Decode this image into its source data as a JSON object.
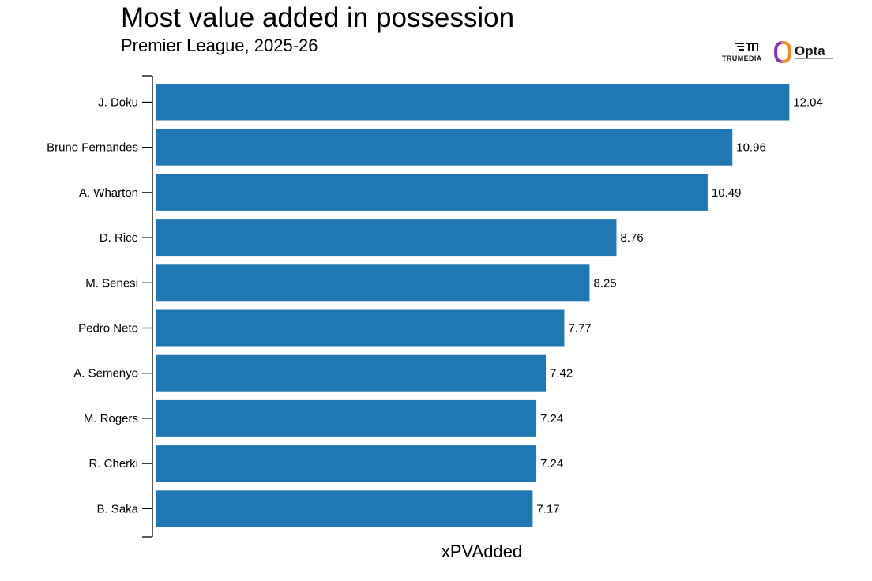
{
  "header": {
    "title": "Most value added in possession",
    "subtitle": "Premier League, 2025-26"
  },
  "logos": {
    "truemedia_label": "TRUMEDIA",
    "opta_label": "Opta"
  },
  "colors": {
    "bar": "#1f77b4",
    "axis": "#000000",
    "opta_orange": "#f28c28",
    "opta_purple": "#8b2fc9"
  },
  "chart_data": {
    "type": "bar",
    "orientation": "horizontal",
    "title": "Most value added in possession",
    "subtitle": "Premier League, 2025-26",
    "xlabel": "xPVAdded",
    "ylabel": "",
    "xlim": [
      0,
      12.5
    ],
    "grid": false,
    "categories": [
      "J. Doku",
      "Bruno Fernandes",
      "A. Wharton",
      "D. Rice",
      "M. Senesi",
      "Pedro Neto",
      "A. Semenyo",
      "M. Rogers",
      "R. Cherki",
      "B. Saka"
    ],
    "values": [
      12.04,
      10.96,
      10.49,
      8.76,
      8.25,
      7.77,
      7.42,
      7.24,
      7.24,
      7.17
    ],
    "data_labels": [
      "12.04",
      "10.96",
      "10.49",
      "8.76",
      "8.25",
      "7.77",
      "7.42",
      "7.24",
      "7.24",
      "7.17"
    ]
  }
}
